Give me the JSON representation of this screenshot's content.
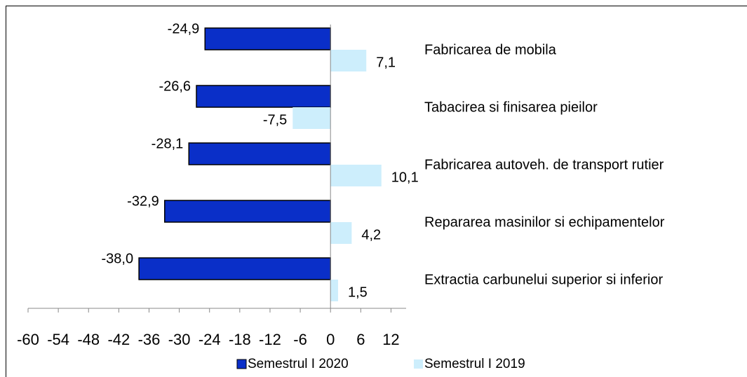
{
  "chart_data": {
    "type": "hbar",
    "categories": [
      "Fabricarea de mobila",
      "Tabacirea si finisarea pieilor",
      "Fabricarea autoveh. de transport rutier",
      "Repararea masinilor si echipamentelor",
      "Extractia carbunelui superior si inferior"
    ],
    "series": [
      {
        "name": "Semestrul I 2020",
        "color": "#0a2fc8",
        "values": [
          -24.9,
          -26.6,
          -28.1,
          -32.9,
          -38.0
        ],
        "value_labels": [
          "-24,9",
          "-26,6",
          "-28,1",
          "-32,9",
          "-38,0"
        ]
      },
      {
        "name": "Semestrul I 2019",
        "color": "#cdeefc",
        "values": [
          7.1,
          -7.5,
          10.1,
          4.2,
          1.5
        ],
        "value_labels": [
          "7,1",
          "-7,5",
          "10,1",
          "4,2",
          "1,5"
        ]
      }
    ],
    "xlim": [
      -60,
      15
    ],
    "xticks": [
      -60,
      -54,
      -48,
      -42,
      -36,
      -30,
      -24,
      -18,
      -12,
      -6,
      0,
      6,
      12
    ],
    "legend": "bottom"
  }
}
